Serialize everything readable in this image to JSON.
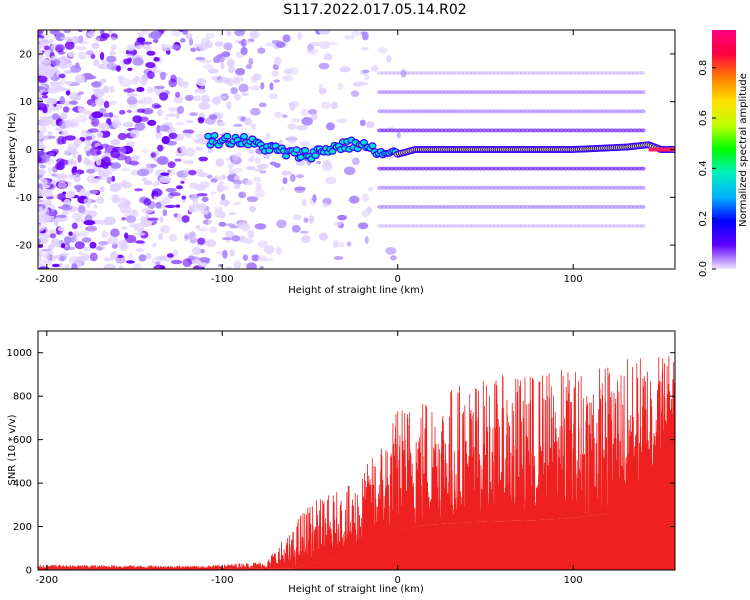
{
  "title": "S117.2022.017.05.14.R02",
  "colors": {
    "background": "#ffffff",
    "snr_fill": "#ee2020",
    "spectrum_low": "#d9c4ff",
    "spectrum_mid": "#6a00ff",
    "spectrum_band": "#00e0d0",
    "spectrum_peak": "#ffd000"
  },
  "chart_data": [
    {
      "type": "heatmap",
      "xlabel": "Height of straight line (km)",
      "ylabel": "Frequency (Hz)",
      "xlim": [
        -205,
        158
      ],
      "ylim": [
        -25,
        25
      ],
      "x_ticks": [
        "-200",
        "-100",
        "0",
        "100"
      ],
      "y_ticks": [
        "20",
        "10",
        "0",
        "-10",
        "-20"
      ],
      "grid": false,
      "colorbar": {
        "label": "Normalized spectral amplitude",
        "range": [
          0,
          0.95
        ],
        "ticks": [
          "0.0",
          "0.2",
          "0.4",
          "0.6",
          "0.8"
        ],
        "colormap": [
          "#f0e6ff",
          "#6000ff",
          "#0000ff",
          "#00b0ff",
          "#00f0c0",
          "#00ff00",
          "#c0ff00",
          "#ffe000",
          "#ff8000",
          "#ff0040",
          "#ff0080"
        ]
      },
      "carrier_track": {
        "x": [
          -108,
          -100,
          -90,
          -80,
          -70,
          -60,
          -50,
          -40,
          -30,
          -20,
          -10,
          0,
          10,
          50,
          100,
          130,
          143,
          150,
          158
        ],
        "y": [
          2,
          2,
          2,
          1,
          0,
          -1,
          -1,
          0,
          1,
          1,
          -1,
          -1,
          0,
          0,
          0,
          0.5,
          1,
          0,
          0
        ]
      },
      "sidebands_hz": [
        -16,
        -12,
        -8,
        -4,
        4,
        8,
        12,
        16
      ]
    },
    {
      "type": "area",
      "xlabel": "Height of straight line (km)",
      "ylabel": "SNR (10 * v/v)",
      "xlim": [
        -205,
        158
      ],
      "ylim": [
        0,
        1100
      ],
      "x_ticks": [
        "-200",
        "-100",
        "0",
        "100"
      ],
      "y_ticks": [
        "0",
        "200",
        "400",
        "600",
        "800",
        "1000"
      ],
      "grid": false,
      "envelope": {
        "x": [
          -205,
          -110,
          -75,
          -68,
          -60,
          -55,
          -45,
          -35,
          -25,
          -15,
          -5,
          0,
          10,
          20,
          30,
          40,
          60,
          80,
          100,
          120,
          130,
          140,
          150,
          158
        ],
        "lower": [
          5,
          5,
          5,
          5,
          5,
          20,
          40,
          60,
          90,
          120,
          160,
          180,
          200,
          210,
          215,
          220,
          225,
          230,
          240,
          260,
          300,
          380,
          500,
          650
        ],
        "upper": [
          25,
          20,
          40,
          120,
          180,
          280,
          330,
          360,
          400,
          520,
          680,
          760,
          800,
          840,
          860,
          880,
          900,
          920,
          940,
          960,
          980,
          1000,
          1020,
          1030
        ]
      }
    }
  ]
}
